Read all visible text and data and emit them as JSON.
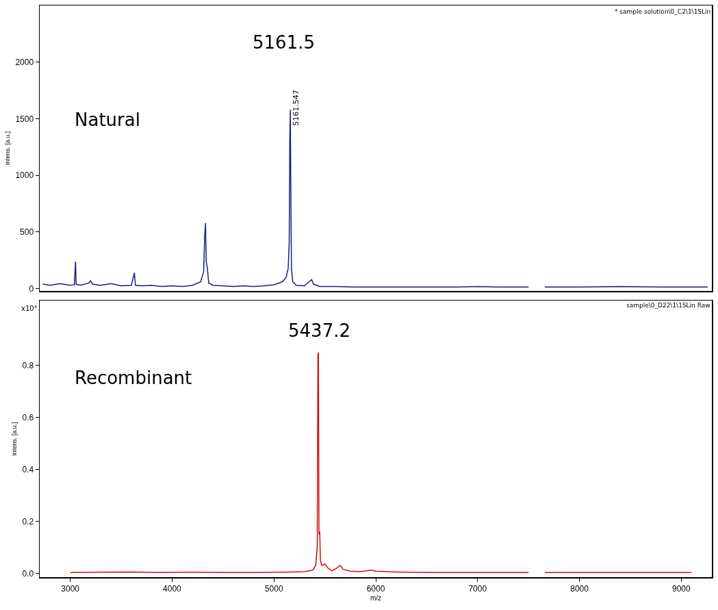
{
  "chart_data": [
    {
      "type": "line",
      "xlim": [
        2700,
        9300
      ],
      "ylim": [
        -20,
        2500
      ],
      "yticks": [
        0,
        500,
        1000,
        1500,
        2000
      ],
      "ylabel": "Intens. [a.u.]",
      "tick_labels": "y",
      "grid": false,
      "marker": "none",
      "line_style": "solid",
      "x": [
        2730,
        2800,
        2900,
        3000,
        3040,
        3052,
        3058,
        3100,
        3180,
        3200,
        3220,
        3300,
        3400,
        3500,
        3600,
        3630,
        3640,
        3700,
        3800,
        3900,
        4000,
        4100,
        4200,
        4280,
        4310,
        4320,
        4328,
        4335,
        4345,
        4360,
        4400,
        4500,
        4600,
        4700,
        4800,
        4900,
        5000,
        5080,
        5120,
        5140,
        5150,
        5156,
        5161,
        5166,
        5172,
        5185,
        5220,
        5300,
        5370,
        5390,
        5450,
        5600,
        5800,
        6000,
        6200,
        6500,
        6800,
        7000,
        7200,
        7500,
        7560,
        7660,
        8000,
        8400,
        8800,
        9200,
        9260
      ],
      "series": [
        {
          "color": "#1a1f7a",
          "values": [
            40,
            30,
            45,
            30,
            35,
            240,
            40,
            30,
            50,
            70,
            40,
            30,
            45,
            25,
            30,
            140,
            30,
            25,
            30,
            20,
            25,
            20,
            30,
            60,
            150,
            470,
            580,
            240,
            190,
            50,
            30,
            25,
            20,
            25,
            20,
            25,
            35,
            60,
            100,
            180,
            400,
            1330,
            1580,
            870,
            180,
            60,
            30,
            25,
            80,
            40,
            20,
            20,
            15,
            15,
            15,
            15,
            15,
            20,
            15,
            15,
            null,
            15,
            15,
            20,
            15,
            15,
            15
          ]
        }
      ],
      "annotations": [
        "* sample solution\\0_C2\\1\\1SLin",
        "Natural",
        "5161.5",
        {
          "text": "5161.547",
          "x": 5161.547,
          "y": 1600
        }
      ]
    },
    {
      "type": "line",
      "xlim": [
        2700,
        9300
      ],
      "ylim": [
        -0.015,
        1.05
      ],
      "xticks": [
        3000,
        4000,
        5000,
        6000,
        7000,
        8000,
        9000
      ],
      "yticks": [
        {
          "value": 0,
          "label": "0.0"
        },
        0.2,
        0.4,
        0.6,
        0.8
      ],
      "xlabel": "m/z",
      "ylabel": "Intens. [a.u.]",
      "grid": false,
      "marker": "none",
      "line_style": "solid",
      "x": [
        3000,
        3300,
        3600,
        3900,
        4200,
        4500,
        4800,
        5100,
        5300,
        5380,
        5410,
        5425,
        5432,
        5437,
        5442,
        5450,
        5456,
        5470,
        5500,
        5530,
        5570,
        5620,
        5650,
        5680,
        5750,
        5850,
        5950,
        6000,
        6200,
        6500,
        7000,
        7500,
        7560,
        7660,
        8000,
        8500,
        9000,
        9100
      ],
      "series": [
        {
          "color": "#cc1111",
          "values": [
            0.003,
            0.004,
            0.005,
            0.003,
            0.004,
            0.003,
            0.003,
            0.004,
            0.006,
            0.012,
            0.03,
            0.1,
            0.84,
            0.85,
            0.15,
            0.16,
            0.05,
            0.03,
            0.035,
            0.02,
            0.01,
            0.02,
            0.03,
            0.015,
            0.008,
            0.006,
            0.012,
            0.008,
            0.005,
            0.003,
            0.003,
            0.003,
            null,
            0.003,
            0.003,
            0.003,
            0.003,
            0.003
          ]
        }
      ],
      "annotations": [
        "sample\\0_D22\\1\\1SLin Raw",
        "x10⁴",
        "Recombinant",
        "5437.2"
      ]
    }
  ]
}
